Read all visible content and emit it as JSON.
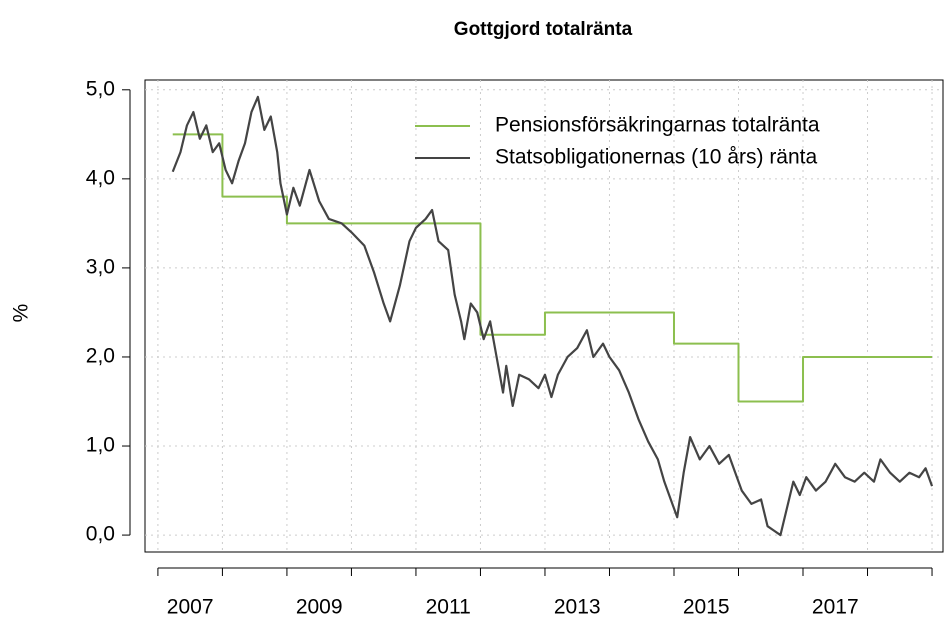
{
  "chart_data": {
    "type": "line",
    "title": "Gottgjord totalränta",
    "ylabel": "%",
    "xlim": [
      2006.8,
      2019.17
    ],
    "ylim": [
      -0.19,
      5.11
    ],
    "xticks": [
      2007,
      2008,
      2009,
      2010,
      2011,
      2012,
      2013,
      2014,
      2015,
      2016,
      2017,
      2018,
      2019
    ],
    "xtick_labels": [
      {
        "value": 2007.5,
        "label": "2007"
      },
      {
        "value": 2009.5,
        "label": "2009"
      },
      {
        "value": 2011.5,
        "label": "2011"
      },
      {
        "value": 2013.5,
        "label": "2013"
      },
      {
        "value": 2015.5,
        "label": "2015"
      },
      {
        "value": 2017.5,
        "label": "2017"
      }
    ],
    "yticks": [
      {
        "value": 0,
        "label": "0,0"
      },
      {
        "value": 1,
        "label": "1,0"
      },
      {
        "value": 2,
        "label": "2,0"
      },
      {
        "value": 3,
        "label": "3,0"
      },
      {
        "value": 4,
        "label": "4,0"
      },
      {
        "value": 5,
        "label": "5,0"
      }
    ],
    "grid": true,
    "legend": "top-right",
    "series": [
      {
        "name": "Pensionsförsäkringarnas totalränta",
        "color": "#8cbf4f",
        "step": "post",
        "x": [
          2007.23,
          2008,
          2009,
          2012,
          2013,
          2015,
          2016,
          2017,
          2019
        ],
        "values": [
          4.5,
          3.8,
          3.5,
          2.25,
          2.5,
          2.15,
          1.5,
          2.0,
          2.0
        ]
      },
      {
        "name": "Statsobligationernas (10 års) ränta",
        "color": "#444444",
        "x": [
          2007.23,
          2007.35,
          2007.45,
          2007.55,
          2007.65,
          2007.75,
          2007.85,
          2007.95,
          2008.05,
          2008.15,
          2008.25,
          2008.35,
          2008.45,
          2008.55,
          2008.65,
          2008.75,
          2008.85,
          2008.9,
          2009.0,
          2009.1,
          2009.2,
          2009.35,
          2009.5,
          2009.65,
          2009.85,
          2010.0,
          2010.2,
          2010.35,
          2010.5,
          2010.6,
          2010.75,
          2010.9,
          2011.0,
          2011.15,
          2011.25,
          2011.35,
          2011.5,
          2011.6,
          2011.7,
          2011.75,
          2011.85,
          2011.95,
          2012.05,
          2012.15,
          2012.25,
          2012.35,
          2012.4,
          2012.5,
          2012.6,
          2012.75,
          2012.9,
          2013.0,
          2013.1,
          2013.2,
          2013.35,
          2013.5,
          2013.65,
          2013.75,
          2013.9,
          2014.0,
          2014.15,
          2014.3,
          2014.45,
          2014.6,
          2014.75,
          2014.85,
          2014.95,
          2015.05,
          2015.15,
          2015.25,
          2015.4,
          2015.55,
          2015.7,
          2015.85,
          2015.95,
          2016.05,
          2016.2,
          2016.35,
          2016.45,
          2016.55,
          2016.65,
          2016.75,
          2016.85,
          2016.95,
          2017.05,
          2017.2,
          2017.35,
          2017.5,
          2017.65,
          2017.8,
          2017.95,
          2018.1,
          2018.2,
          2018.35,
          2018.5,
          2018.65,
          2018.8,
          2018.9,
          2019.0
        ],
        "values": [
          4.08,
          4.3,
          4.6,
          4.75,
          4.45,
          4.6,
          4.3,
          4.4,
          4.1,
          3.95,
          4.2,
          4.4,
          4.75,
          4.92,
          4.55,
          4.7,
          4.3,
          3.95,
          3.6,
          3.9,
          3.7,
          4.1,
          3.75,
          3.55,
          3.5,
          3.4,
          3.25,
          2.95,
          2.6,
          2.4,
          2.8,
          3.3,
          3.45,
          3.55,
          3.65,
          3.3,
          3.2,
          2.7,
          2.4,
          2.2,
          2.6,
          2.5,
          2.2,
          2.4,
          2.0,
          1.6,
          1.9,
          1.45,
          1.8,
          1.75,
          1.65,
          1.8,
          1.55,
          1.8,
          2.0,
          2.1,
          2.3,
          2.0,
          2.15,
          2.0,
          1.85,
          1.6,
          1.3,
          1.05,
          0.85,
          0.6,
          0.4,
          0.2,
          0.7,
          1.1,
          0.85,
          1.0,
          0.8,
          0.9,
          0.7,
          0.5,
          0.35,
          0.4,
          0.1,
          0.05,
          0.0,
          0.3,
          0.6,
          0.45,
          0.65,
          0.5,
          0.6,
          0.8,
          0.65,
          0.6,
          0.7,
          0.6,
          0.85,
          0.7,
          0.6,
          0.7,
          0.65,
          0.75,
          0.55
        ]
      }
    ]
  }
}
